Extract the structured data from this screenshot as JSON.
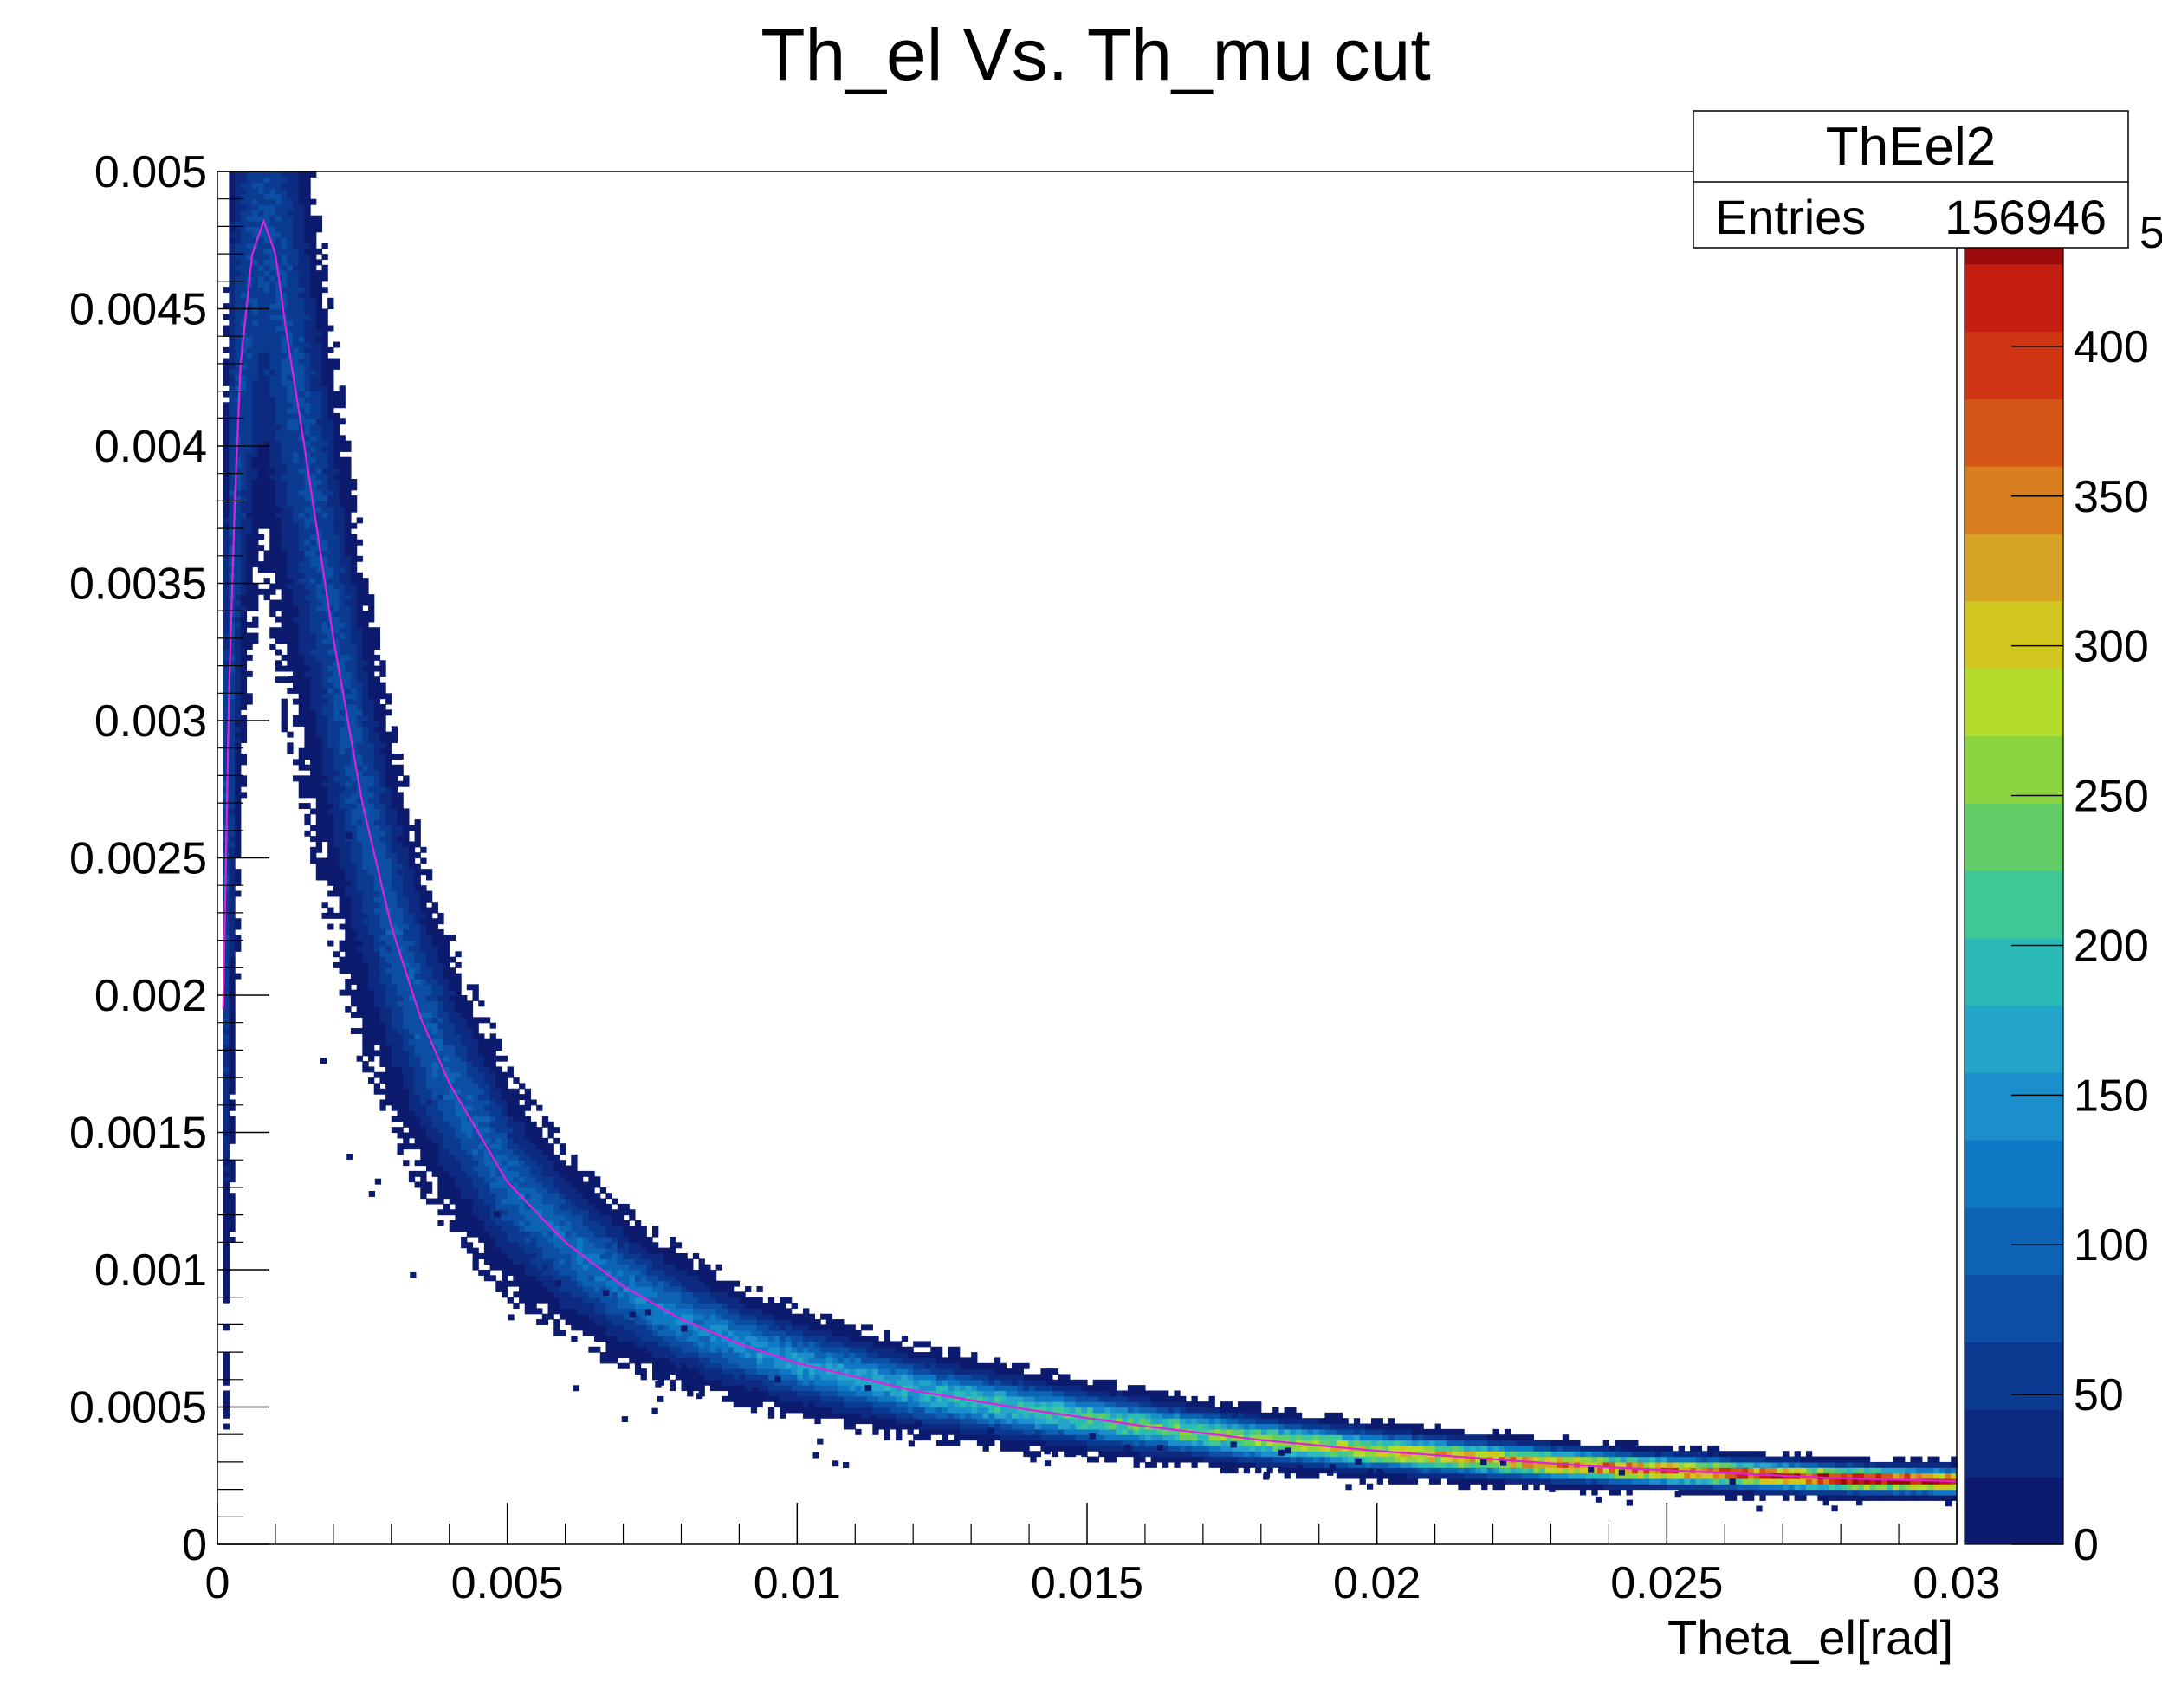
{
  "chart_data": {
    "type": "heatmap",
    "title": "Th_el Vs. Th_mu cut",
    "xlabel": "Theta_el[rad]",
    "ylabel": "",
    "xlim": [
      0,
      0.03
    ],
    "ylim": [
      0,
      0.005
    ],
    "x_ticks": [
      "0",
      "0.005",
      "0.01",
      "0.015",
      "0.02",
      "0.025",
      "0.03"
    ],
    "y_ticks": [
      "0",
      "0.0005",
      "0.001",
      "0.0015",
      "0.002",
      "0.0025",
      "0.003",
      "0.0035",
      "0.004",
      "0.0045",
      "0.005"
    ],
    "z_range": [
      0,
      450
    ],
    "z_ticks": [
      "0",
      "50",
      "100",
      "150",
      "200",
      "250",
      "300",
      "350",
      "400"
    ],
    "z_tick_partial_top": "50",
    "legend": {
      "name": "ThEel2",
      "entries_label": "Entries",
      "entries_value": "156946",
      "placement": "top-right"
    },
    "palette": [
      "#0d1b6e",
      "#0c2a80",
      "#0b3a91",
      "#0b4ea3",
      "#0d62b3",
      "#0f78c4",
      "#1a8fcc",
      "#24a5c9",
      "#2bbab8",
      "#3fc796",
      "#62cc66",
      "#8dd540",
      "#b5dc2a",
      "#d2c71f",
      "#d7a322",
      "#d77e1e",
      "#d55718",
      "#cf3513",
      "#c41e12",
      "#9c0b0b"
    ],
    "fit_color": "#e020e0",
    "fit_curve": [
      [
        0.0001,
        0.00195
      ],
      [
        0.0002,
        0.0031
      ],
      [
        0.0003,
        0.0038
      ],
      [
        0.0004,
        0.0043
      ],
      [
        0.0006,
        0.0047
      ],
      [
        0.0008,
        0.00482
      ],
      [
        0.001,
        0.0047
      ],
      [
        0.0012,
        0.0044
      ],
      [
        0.0015,
        0.004
      ],
      [
        0.002,
        0.0033
      ],
      [
        0.0025,
        0.0027
      ],
      [
        0.003,
        0.00225
      ],
      [
        0.0035,
        0.00192
      ],
      [
        0.004,
        0.00168
      ],
      [
        0.005,
        0.00132
      ],
      [
        0.006,
        0.0011
      ],
      [
        0.007,
        0.00094
      ],
      [
        0.008,
        0.00082
      ],
      [
        0.009,
        0.00073
      ],
      [
        0.01,
        0.00066
      ],
      [
        0.012,
        0.00056
      ],
      [
        0.014,
        0.00049
      ],
      [
        0.016,
        0.00043
      ],
      [
        0.018,
        0.00038
      ],
      [
        0.02,
        0.00034
      ],
      [
        0.022,
        0.00031
      ],
      [
        0.024,
        0.00028
      ],
      [
        0.026,
        0.00026
      ],
      [
        0.028,
        0.00024
      ],
      [
        0.03,
        0.00023
      ]
    ]
  }
}
